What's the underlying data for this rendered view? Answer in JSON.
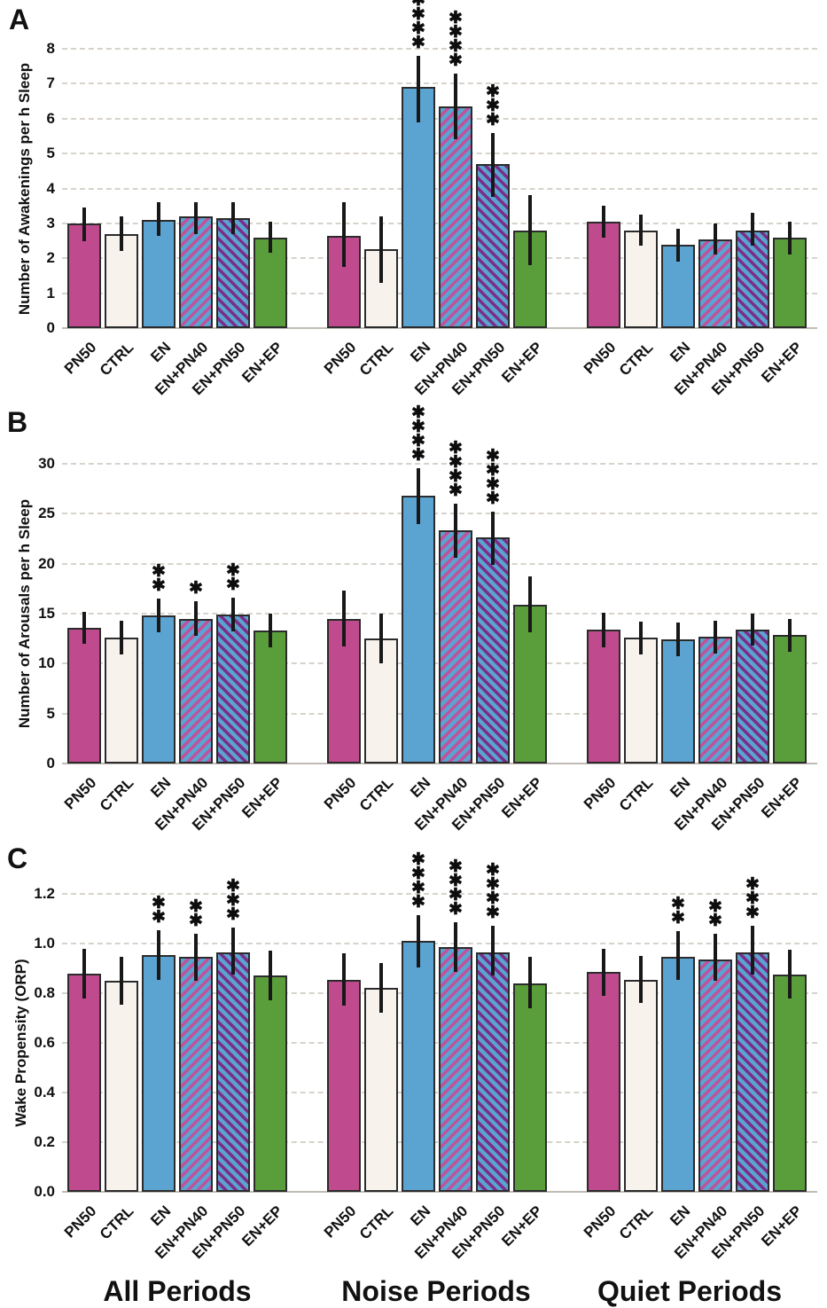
{
  "group_titles": [
    "All Periods",
    "Noise Periods",
    "Quiet Periods"
  ],
  "conditions": [
    "PN50",
    "CTRL",
    "EN",
    "EN+PN40",
    "EN+PN50",
    "EN+EP"
  ],
  "styles": {
    "magenta": "#c04a8e",
    "cream": "#f7f2ec",
    "blue": "#5ba3d0",
    "green": "#5a9e3c",
    "stripe_pink": "#c0529b",
    "stripe_purple": "#7b2e88",
    "bar_outline": "#2b2b2b",
    "error_bar": "#181818",
    "gridline": "#d7d2cc",
    "axis_line": "#c1bcb6",
    "text": "#111111",
    "background": "#ffffff"
  },
  "bar_styles": [
    {
      "label": "PN50",
      "pattern": "solid",
      "fill": "#c04a8e",
      "stripe": ""
    },
    {
      "label": "CTRL",
      "pattern": "solid",
      "fill": "#f7f2ec",
      "stripe": ""
    },
    {
      "label": "EN",
      "pattern": "solid",
      "fill": "#5ba3d0",
      "stripe": ""
    },
    {
      "label": "EN+PN40",
      "pattern": "diag-up",
      "fill": "#5ba3d0",
      "stripe": "#c0529b"
    },
    {
      "label": "EN+PN50",
      "pattern": "diag-down",
      "fill": "#5ba3d0",
      "stripe": "#7b2e88"
    },
    {
      "label": "EN+EP",
      "pattern": "solid",
      "fill": "#5a9e3c",
      "stripe": ""
    }
  ],
  "chart_data": [
    {
      "type": "bar",
      "panel": "A",
      "ylabel": "Number of Awakenings per h Sleep",
      "ylim": [
        0,
        8
      ],
      "grid": true,
      "ytick_values": [
        0,
        1,
        2,
        3,
        4,
        5,
        6,
        7,
        8
      ],
      "ytick_labels": [
        "0",
        "1",
        "2",
        "3",
        "4",
        "5",
        "6",
        "7",
        "8"
      ],
      "categories": [
        "PN50",
        "CTRL",
        "EN",
        "EN+PN40",
        "EN+PN50",
        "EN+EP"
      ],
      "groups": [
        {
          "name": "All Periods",
          "values": [
            3.0,
            2.7,
            3.1,
            3.2,
            3.15,
            2.6
          ],
          "err_low": [
            2.5,
            2.2,
            2.65,
            2.7,
            2.7,
            2.15
          ],
          "err_high": [
            3.45,
            3.2,
            3.6,
            3.6,
            3.6,
            3.05
          ],
          "sig": [
            "",
            "",
            "",
            "",
            "",
            ""
          ]
        },
        {
          "name": "Noise Periods",
          "values": [
            2.65,
            2.25,
            6.9,
            6.35,
            4.7,
            2.8
          ],
          "err_low": [
            1.75,
            1.3,
            5.9,
            5.4,
            3.75,
            1.8
          ],
          "err_high": [
            3.6,
            3.2,
            7.8,
            7.3,
            5.6,
            3.8
          ],
          "sig": [
            "",
            "",
            "****",
            "****",
            "***",
            ""
          ]
        },
        {
          "name": "Quiet Periods",
          "values": [
            3.05,
            2.8,
            2.4,
            2.55,
            2.8,
            2.6
          ],
          "err_low": [
            2.6,
            2.35,
            1.9,
            2.1,
            2.35,
            2.1
          ],
          "err_high": [
            3.5,
            3.25,
            2.85,
            3.0,
            3.3,
            3.05
          ],
          "sig": [
            "",
            "",
            "",
            "",
            "",
            ""
          ]
        }
      ]
    },
    {
      "type": "bar",
      "panel": "B",
      "ylabel": "Number of Arousals per h Sleep",
      "ylim": [
        0,
        30
      ],
      "grid": true,
      "ytick_values": [
        0,
        5,
        10,
        15,
        20,
        25,
        30
      ],
      "ytick_labels": [
        "0",
        "5",
        "10",
        "15",
        "20",
        "25",
        "30"
      ],
      "categories": [
        "PN50",
        "CTRL",
        "EN",
        "EN+PN40",
        "EN+PN50",
        "EN+EP"
      ],
      "groups": [
        {
          "name": "All Periods",
          "values": [
            13.6,
            12.6,
            14.8,
            14.5,
            14.9,
            13.3
          ],
          "err_low": [
            12.0,
            10.9,
            13.1,
            12.8,
            13.2,
            11.6
          ],
          "err_high": [
            15.2,
            14.3,
            16.5,
            16.2,
            16.6,
            15.0
          ],
          "sig": [
            "",
            "",
            "**",
            "*",
            "**",
            ""
          ]
        },
        {
          "name": "Noise Periods",
          "values": [
            14.5,
            12.5,
            26.8,
            23.3,
            22.6,
            15.9
          ],
          "err_low": [
            11.7,
            10.0,
            24.0,
            20.6,
            19.9,
            13.1
          ],
          "err_high": [
            17.3,
            15.0,
            29.6,
            26.0,
            25.2,
            18.7
          ],
          "sig": [
            "",
            "",
            "****",
            "****",
            "****",
            ""
          ]
        },
        {
          "name": "Quiet Periods",
          "values": [
            13.4,
            12.6,
            12.4,
            12.7,
            13.4,
            12.9
          ],
          "err_low": [
            11.6,
            10.9,
            10.7,
            11.0,
            11.8,
            11.2
          ],
          "err_high": [
            15.1,
            14.2,
            14.1,
            14.3,
            15.0,
            14.5
          ],
          "sig": [
            "",
            "",
            "",
            "",
            "",
            ""
          ]
        }
      ]
    },
    {
      "type": "bar",
      "panel": "C",
      "ylabel": "Wake Propensity (ORP)",
      "ylim": [
        0,
        1.2
      ],
      "grid": true,
      "ytick_values": [
        0,
        0.2,
        0.4,
        0.6,
        0.8,
        1.0,
        1.2
      ],
      "ytick_labels": [
        "0.0",
        "0.2",
        "0.4",
        "0.6",
        "0.8",
        "1.0",
        "1.2"
      ],
      "categories": [
        "PN50",
        "CTRL",
        "EN",
        "EN+PN40",
        "EN+PN50",
        "EN+EP"
      ],
      "groups": [
        {
          "name": "All Periods",
          "values": [
            0.88,
            0.85,
            0.955,
            0.945,
            0.965,
            0.87
          ],
          "err_low": [
            0.78,
            0.755,
            0.855,
            0.85,
            0.875,
            0.77
          ],
          "err_high": [
            0.98,
            0.945,
            1.055,
            1.04,
            1.065,
            0.97
          ],
          "sig": [
            "",
            "",
            "**",
            "**",
            "***",
            ""
          ]
        },
        {
          "name": "Noise Periods",
          "values": [
            0.855,
            0.82,
            1.01,
            0.985,
            0.965,
            0.84
          ],
          "err_low": [
            0.75,
            0.72,
            0.905,
            0.885,
            0.87,
            0.74
          ],
          "err_high": [
            0.96,
            0.92,
            1.115,
            1.085,
            1.07,
            0.945
          ],
          "sig": [
            "",
            "",
            "****",
            "****",
            "****",
            ""
          ]
        },
        {
          "name": "Quiet Periods",
          "values": [
            0.885,
            0.855,
            0.945,
            0.935,
            0.965,
            0.875
          ],
          "err_low": [
            0.79,
            0.76,
            0.855,
            0.85,
            0.875,
            0.78
          ],
          "err_high": [
            0.98,
            0.95,
            1.05,
            1.04,
            1.07,
            0.975
          ],
          "sig": [
            "",
            "",
            "**",
            "**",
            "***",
            ""
          ]
        }
      ]
    }
  ]
}
